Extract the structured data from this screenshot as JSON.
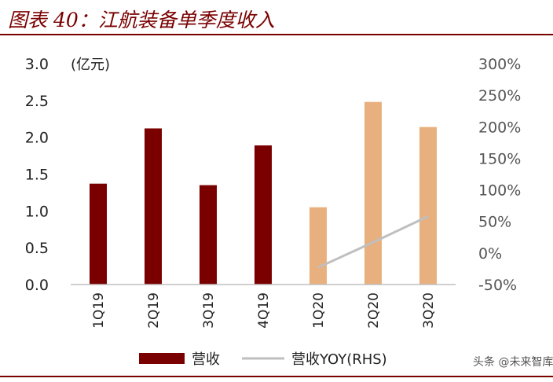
{
  "title": "图表 40：江航装备单季度收入",
  "watermark": "头条 @未来智库",
  "chart_data": {
    "type": "bar",
    "categories": [
      "1Q19",
      "2Q19",
      "3Q19",
      "4Q19",
      "1Q20",
      "2Q20",
      "3Q20"
    ],
    "y_unit_label": "(亿元)",
    "ylim": [
      0,
      3.0
    ],
    "yticks": [
      "0.0",
      "0.5",
      "1.0",
      "1.5",
      "2.0",
      "2.5",
      "3.0"
    ],
    "y2lim": [
      -50,
      300
    ],
    "y2ticks": [
      "-50%",
      "0%",
      "50%",
      "100%",
      "150%",
      "200%",
      "250%",
      "300%"
    ],
    "series": [
      {
        "name": "营收",
        "type": "bar",
        "axis": "left",
        "values": [
          1.37,
          2.12,
          1.35,
          1.89,
          1.05,
          2.48,
          2.14
        ],
        "colors": [
          "#7a0000",
          "#7a0000",
          "#7a0000",
          "#7a0000",
          "#e8b07e",
          "#e8b07e",
          "#e8b07e"
        ]
      },
      {
        "name": "营收YOY(RHS)",
        "type": "line",
        "axis": "right",
        "color": "#bfbfbf",
        "values": [
          null,
          null,
          null,
          null,
          -23,
          17,
          58
        ]
      }
    ],
    "legend_position": "bottom",
    "grid": false
  }
}
